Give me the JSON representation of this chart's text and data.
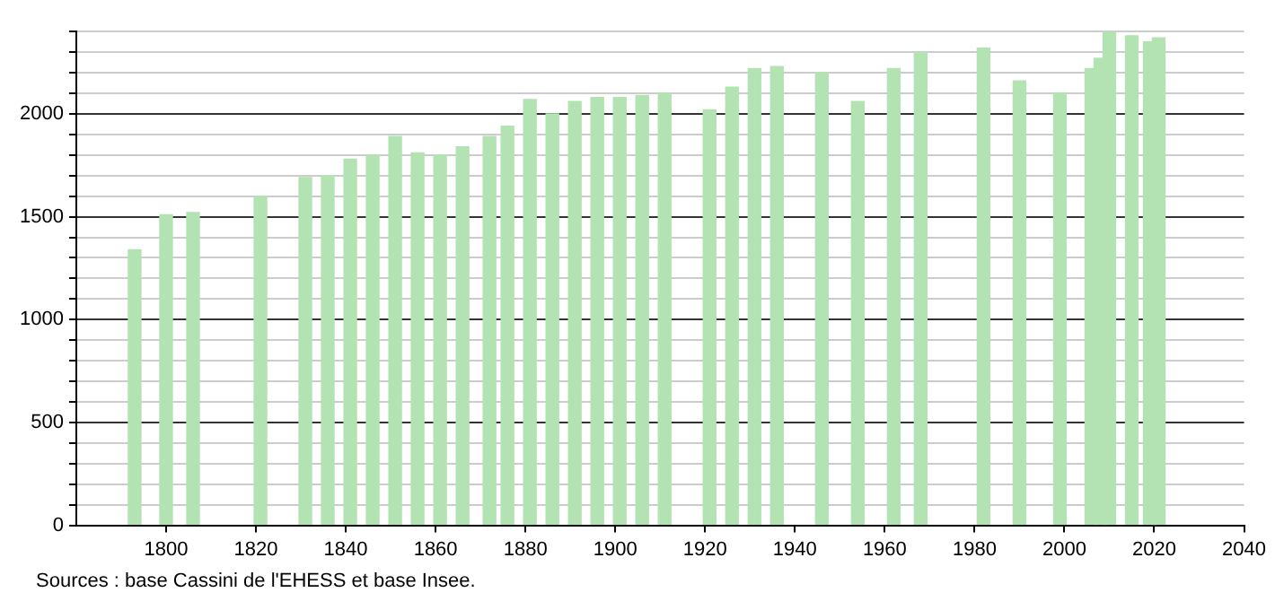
{
  "chart_data": {
    "type": "bar",
    "x": [
      1793,
      1800,
      1806,
      1821,
      1831,
      1836,
      1841,
      1846,
      1851,
      1856,
      1861,
      1866,
      1872,
      1876,
      1881,
      1886,
      1891,
      1896,
      1901,
      1906,
      1911,
      1921,
      1926,
      1931,
      1936,
      1946,
      1954,
      1962,
      1968,
      1982,
      1990,
      1999,
      2006,
      2008,
      2010,
      2015,
      2019,
      2021
    ],
    "values": [
      1340,
      1510,
      1520,
      1600,
      1690,
      1700,
      1780,
      1800,
      1890,
      1810,
      1800,
      1840,
      1890,
      1940,
      2070,
      2000,
      2060,
      2080,
      2080,
      2090,
      2100,
      2020,
      2130,
      2220,
      2230,
      2200,
      2060,
      2220,
      2300,
      2320,
      2160,
      2100,
      2220,
      2270,
      2400,
      2380,
      2350,
      2370
    ],
    "color": "#b3e2b3",
    "xlim": [
      1780,
      2040
    ],
    "xticks": [
      1800,
      1820,
      1840,
      1860,
      1880,
      1900,
      1920,
      1940,
      1960,
      1980,
      2000,
      2020,
      2040
    ],
    "ylim": [
      0,
      2400
    ],
    "yticks": [
      0,
      {
        "value": 100,
        "label": null
      },
      {
        "value": 200,
        "label": null
      },
      {
        "value": 300,
        "label": null
      },
      {
        "value": 400,
        "label": null
      },
      500,
      {
        "value": 600,
        "label": null
      },
      {
        "value": 700,
        "label": null
      },
      {
        "value": 800,
        "label": null
      },
      {
        "value": 900,
        "label": null
      },
      1000,
      {
        "value": 1100,
        "label": null
      },
      {
        "value": 1200,
        "label": null
      },
      {
        "value": 1300,
        "label": null
      },
      {
        "value": 1400,
        "label": null
      },
      1500,
      {
        "value": 1600,
        "label": null
      },
      {
        "value": 1700,
        "label": null
      },
      {
        "value": 1800,
        "label": null
      },
      {
        "value": 1900,
        "label": null
      },
      2000,
      {
        "value": 2100,
        "label": null
      },
      {
        "value": 2200,
        "label": null
      },
      {
        "value": 2300,
        "label": null
      },
      {
        "value": 2400,
        "label": null
      }
    ],
    "grid": "y",
    "annotations": [
      "Sources : base Cassini de l'EHESS et base Insee."
    ]
  }
}
